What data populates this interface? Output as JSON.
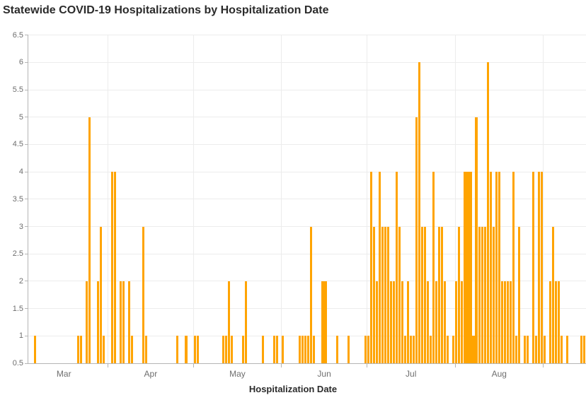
{
  "header": {
    "title": "Statewide COVID-19 Hospitalizations by Hospitalization Date"
  },
  "chart_data": {
    "type": "bar",
    "title": "Statewide COVID-19 Hospitalizations by Hospitalization Date",
    "xlabel": "Hospitalization Date",
    "ylabel": "",
    "ylim": [
      0.5,
      6.5
    ],
    "ytick_step": 0.5,
    "y_tick_labels": [
      "0.5",
      "1",
      "1.5",
      "2",
      "2.5",
      "3",
      "3.5",
      "4",
      "4.5",
      "5",
      "5.5",
      "6",
      "6.5"
    ],
    "x_month_labels": [
      "Mar",
      "Apr",
      "May",
      "Jun",
      "Jul",
      "Aug"
    ],
    "grid": "on",
    "legend": "none",
    "bar_color": "#FFA400",
    "series": [
      {
        "name": "Hospitalizations",
        "points": [
          [
            "Mar 6",
            1
          ],
          [
            "Mar 21",
            1
          ],
          [
            "Mar 22",
            1
          ],
          [
            "Mar 24",
            2
          ],
          [
            "Mar 25",
            5
          ],
          [
            "Mar 28",
            2
          ],
          [
            "Mar 29",
            3
          ],
          [
            "Mar 30",
            1
          ],
          [
            "Apr 2",
            4
          ],
          [
            "Apr 3",
            4
          ],
          [
            "Apr 5",
            2
          ],
          [
            "Apr 6",
            2
          ],
          [
            "Apr 8",
            2
          ],
          [
            "Apr 9",
            1
          ],
          [
            "Apr 13",
            3
          ],
          [
            "Apr 14",
            1
          ],
          [
            "Apr 25",
            1
          ],
          [
            "Apr 28",
            1
          ],
          [
            "May 1",
            1
          ],
          [
            "May 2",
            1
          ],
          [
            "May 11",
            1
          ],
          [
            "May 12",
            1
          ],
          [
            "May 13",
            2
          ],
          [
            "May 14",
            1
          ],
          [
            "May 18",
            1
          ],
          [
            "May 19",
            2
          ],
          [
            "May 25",
            1
          ],
          [
            "May 29",
            1
          ],
          [
            "May 30",
            1
          ],
          [
            "Jun 1",
            1
          ],
          [
            "Jun 7",
            1
          ],
          [
            "Jun 8",
            1
          ],
          [
            "Jun 9",
            1
          ],
          [
            "Jun 10",
            1
          ],
          [
            "Jun 11",
            3
          ],
          [
            "Jun 12",
            1
          ],
          [
            "Jun 15",
            2
          ],
          [
            "Jun 16",
            2
          ],
          [
            "Jun 20",
            1
          ],
          [
            "Jun 24",
            1
          ],
          [
            "Jun 30",
            1
          ],
          [
            "Jul 1",
            1
          ],
          [
            "Jul 2",
            4
          ],
          [
            "Jul 3",
            3
          ],
          [
            "Jul 4",
            2
          ],
          [
            "Jul 5",
            4
          ],
          [
            "Jul 6",
            3
          ],
          [
            "Jul 7",
            3
          ],
          [
            "Jul 8",
            3
          ],
          [
            "Jul 9",
            2
          ],
          [
            "Jul 10",
            2
          ],
          [
            "Jul 11",
            4
          ],
          [
            "Jul 12",
            3
          ],
          [
            "Jul 13",
            2
          ],
          [
            "Jul 14",
            1
          ],
          [
            "Jul 15",
            2
          ],
          [
            "Jul 16",
            1
          ],
          [
            "Jul 17",
            1
          ],
          [
            "Jul 18",
            5
          ],
          [
            "Jul 19",
            6
          ],
          [
            "Jul 20",
            3
          ],
          [
            "Jul 21",
            3
          ],
          [
            "Jul 22",
            2
          ],
          [
            "Jul 23",
            1
          ],
          [
            "Jul 24",
            4
          ],
          [
            "Jul 25",
            2
          ],
          [
            "Jul 26",
            3
          ],
          [
            "Jul 27",
            3
          ],
          [
            "Jul 28",
            2
          ],
          [
            "Jul 29",
            1
          ],
          [
            "Jul 31",
            1
          ],
          [
            "Aug 1",
            2
          ],
          [
            "Aug 2",
            3
          ],
          [
            "Aug 3",
            2
          ],
          [
            "Aug 4",
            4
          ],
          [
            "Aug 5",
            4
          ],
          [
            "Aug 6",
            4
          ],
          [
            "Aug 7",
            1
          ],
          [
            "Aug 8",
            5
          ],
          [
            "Aug 9",
            3
          ],
          [
            "Aug 10",
            3
          ],
          [
            "Aug 11",
            3
          ],
          [
            "Aug 12",
            6
          ],
          [
            "Aug 13",
            4
          ],
          [
            "Aug 14",
            3
          ],
          [
            "Aug 15",
            4
          ],
          [
            "Aug 16",
            4
          ],
          [
            "Aug 17",
            2
          ],
          [
            "Aug 18",
            2
          ],
          [
            "Aug 19",
            2
          ],
          [
            "Aug 20",
            2
          ],
          [
            "Aug 21",
            4
          ],
          [
            "Aug 22",
            1
          ],
          [
            "Aug 23",
            3
          ],
          [
            "Aug 25",
            1
          ],
          [
            "Aug 26",
            1
          ],
          [
            "Aug 28",
            4
          ],
          [
            "Aug 29",
            1
          ],
          [
            "Aug 30",
            4
          ],
          [
            "Aug 31",
            4
          ],
          [
            "Sep 1",
            1
          ],
          [
            "Sep 3",
            2
          ],
          [
            "Sep 4",
            3
          ],
          [
            "Sep 5",
            2
          ],
          [
            "Sep 6",
            2
          ],
          [
            "Sep 7",
            1
          ],
          [
            "Sep 9",
            1
          ],
          [
            "Sep 14",
            1
          ],
          [
            "Sep 15",
            1
          ]
        ]
      }
    ]
  }
}
